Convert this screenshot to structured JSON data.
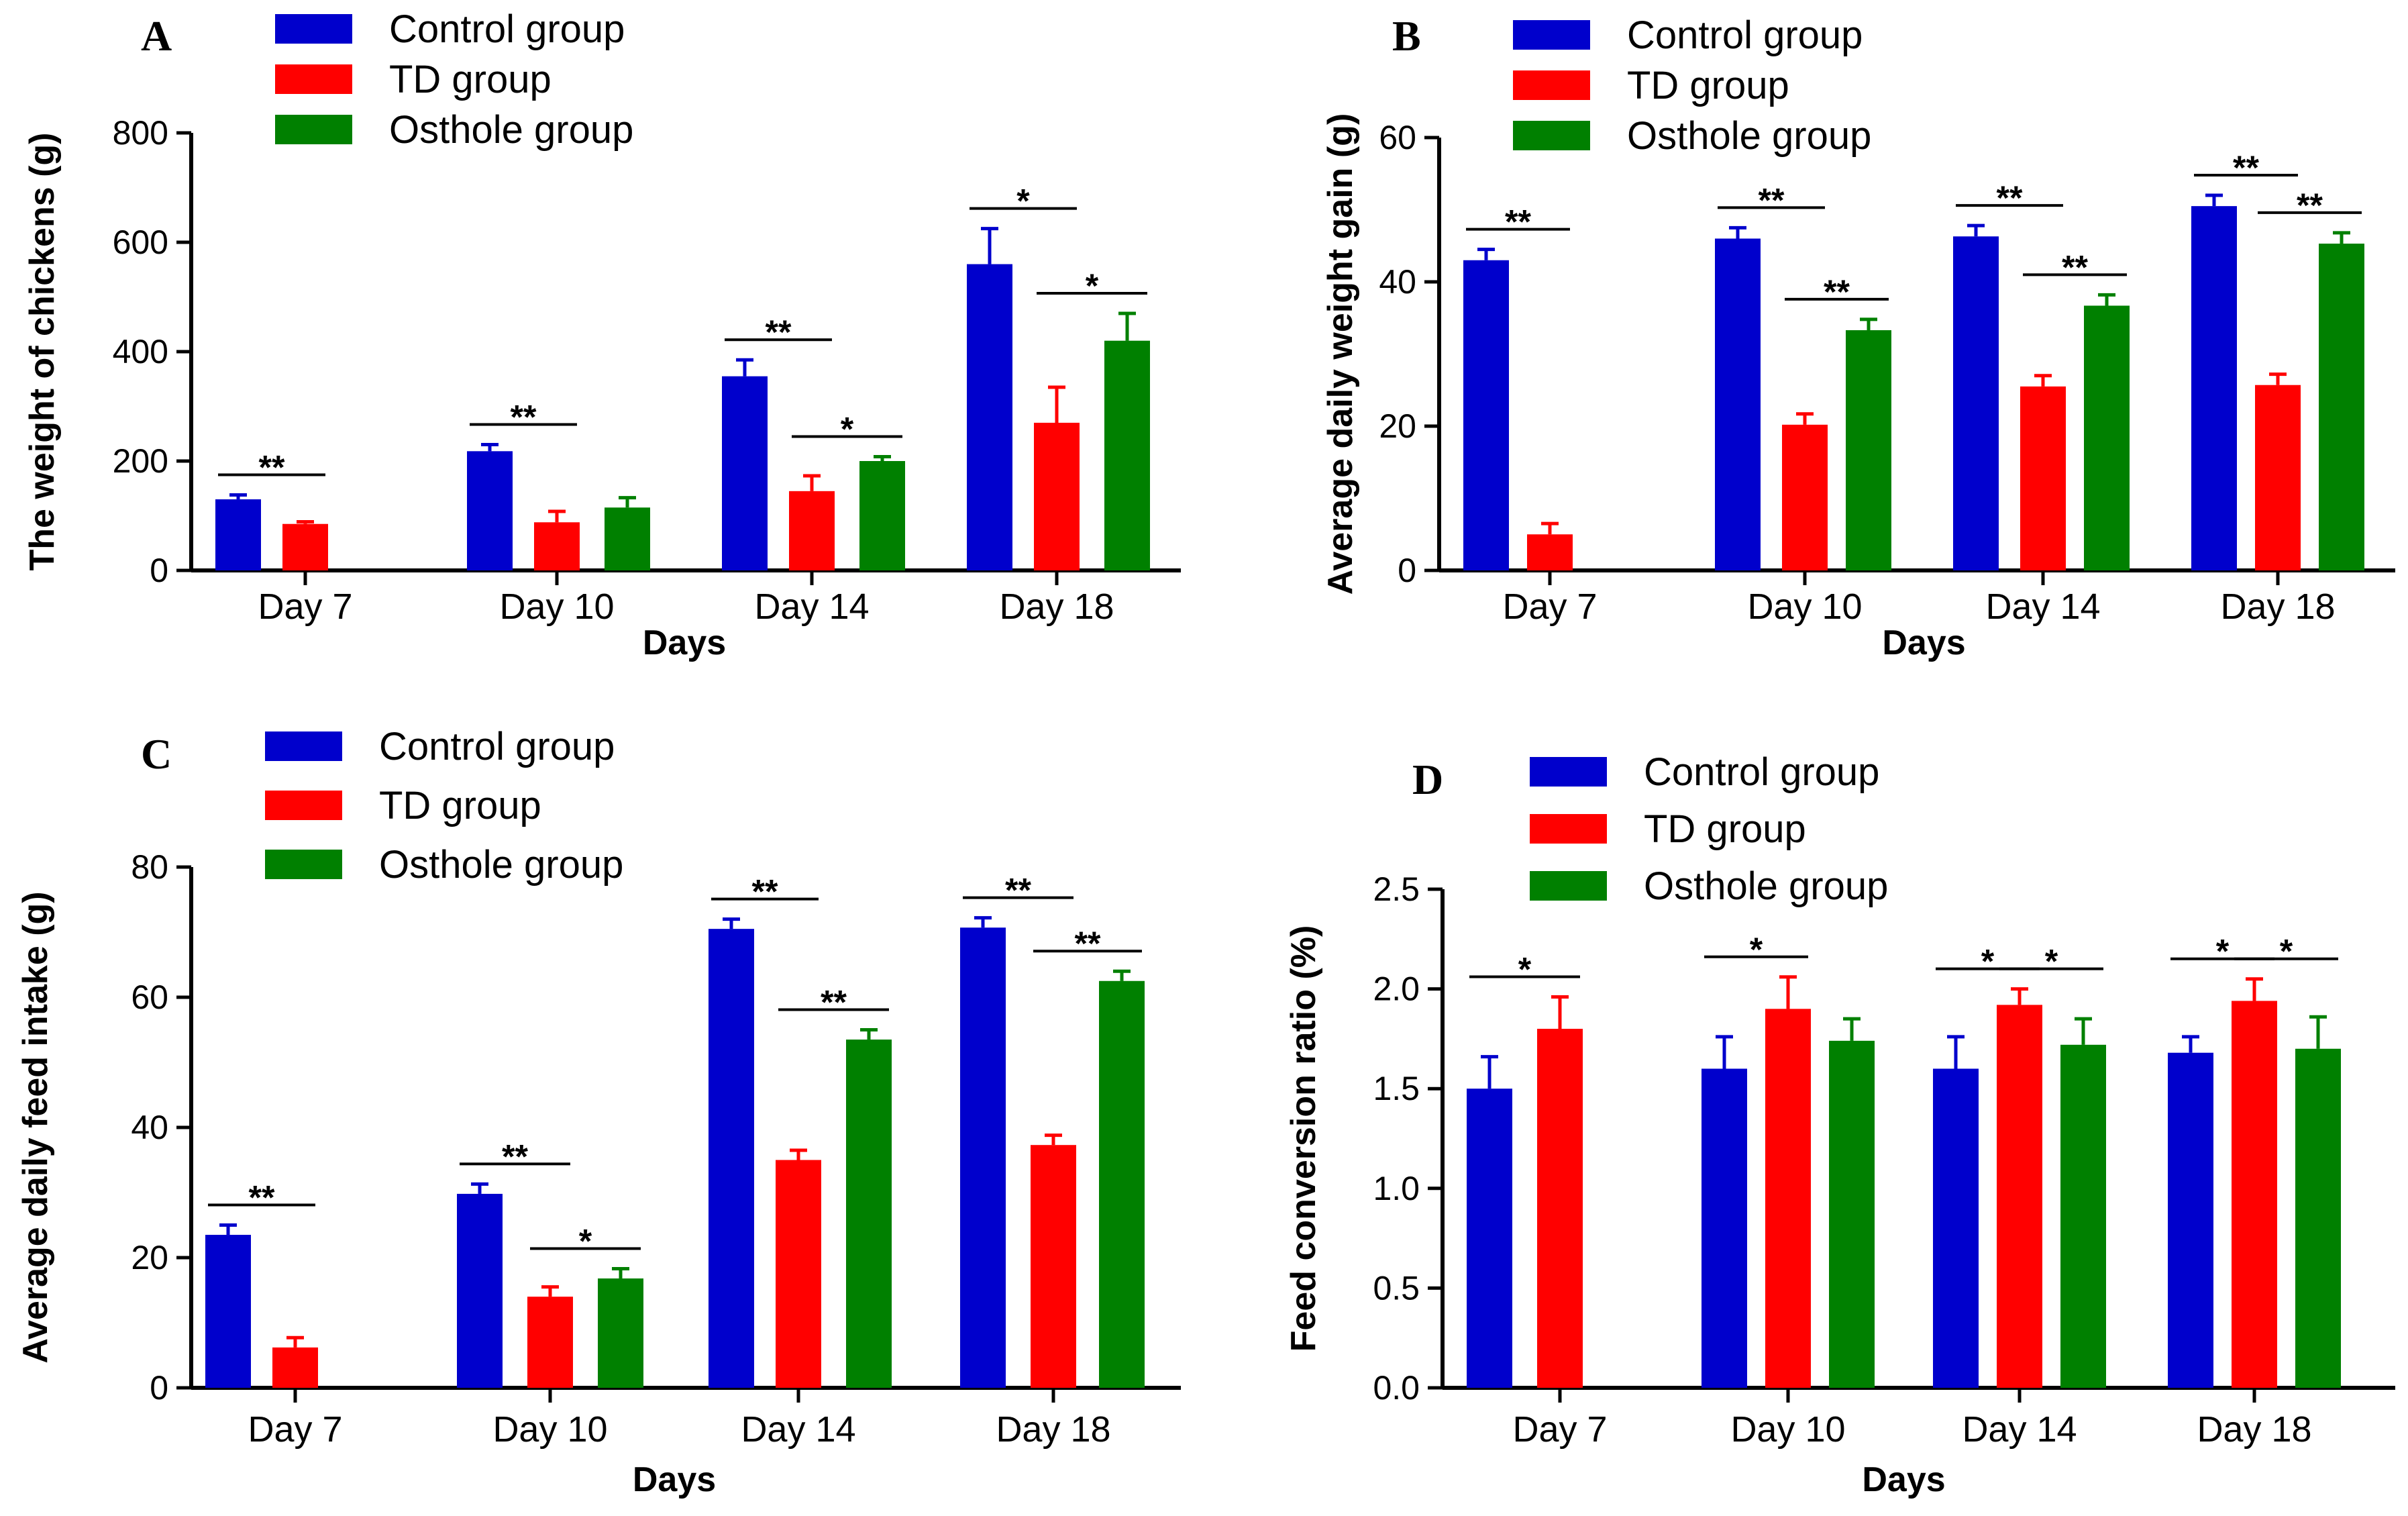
{
  "figure": {
    "legend_entries": [
      "Control group",
      "TD group",
      "Osthole group"
    ],
    "colors": {
      "Control group": "#0000cc",
      "TD group": "#ff0000",
      "Osthole group": "#008000"
    }
  },
  "chart_data": [
    {
      "panel": "A",
      "type": "bar",
      "title": "",
      "xlabel": "Days",
      "ylabel": "The weight of chickens (g)",
      "ylim": [
        0,
        800
      ],
      "yticks": [
        "0",
        "200",
        "400",
        "600",
        "800"
      ],
      "categories": [
        "Day 7",
        "Day 10",
        "Day 14",
        "Day 18"
      ],
      "series": [
        {
          "name": "Control group",
          "values": [
            130,
            218,
            355,
            560
          ],
          "errors": [
            8,
            12,
            30,
            65
          ]
        },
        {
          "name": "TD group",
          "values": [
            85,
            88,
            145,
            270
          ],
          "errors": [
            4,
            20,
            28,
            65
          ]
        },
        {
          "name": "Osthole group",
          "values": [
            null,
            115,
            200,
            420
          ],
          "errors": [
            null,
            18,
            8,
            50
          ]
        }
      ],
      "annotations": [
        {
          "category": "Day 7",
          "from": "Control group",
          "to": "TD group",
          "label": "**"
        },
        {
          "category": "Day 10",
          "from": "Control group",
          "to": "TD group",
          "label": "**"
        },
        {
          "category": "Day 14",
          "from": "Control group",
          "to": "TD group",
          "label": "**"
        },
        {
          "category": "Day 14",
          "from": "TD group",
          "to": "Osthole group",
          "label": "*"
        },
        {
          "category": "Day 18",
          "from": "Control group",
          "to": "TD group",
          "label": "*"
        },
        {
          "category": "Day 18",
          "from": "TD group",
          "to": "Osthole group",
          "label": "*"
        }
      ]
    },
    {
      "panel": "B",
      "type": "bar",
      "title": "",
      "xlabel": "Days",
      "ylabel": "Average daily weight gain (g)",
      "ylim": [
        0,
        60
      ],
      "yticks": [
        "0",
        "20",
        "40",
        "60"
      ],
      "categories": [
        "Day 7",
        "Day 10",
        "Day 14",
        "Day 18"
      ],
      "series": [
        {
          "name": "Control group",
          "values": [
            43,
            46,
            46.3,
            50.5
          ],
          "errors": [
            1.5,
            1.5,
            1.5,
            1.5
          ]
        },
        {
          "name": "TD group",
          "values": [
            5,
            20.2,
            25.5,
            25.7
          ],
          "errors": [
            1.5,
            1.5,
            1.5,
            1.5
          ]
        },
        {
          "name": "Osthole group",
          "values": [
            null,
            33.3,
            36.7,
            45.3
          ],
          "errors": [
            null,
            1.5,
            1.5,
            1.5
          ]
        }
      ],
      "annotations": [
        {
          "category": "Day 7",
          "from": "Control group",
          "to": "TD group",
          "label": "**"
        },
        {
          "category": "Day 10",
          "from": "Control group",
          "to": "TD group",
          "label": "**"
        },
        {
          "category": "Day 10",
          "from": "TD group",
          "to": "Osthole group",
          "label": "**"
        },
        {
          "category": "Day 14",
          "from": "Control group",
          "to": "TD group",
          "label": "**"
        },
        {
          "category": "Day 14",
          "from": "TD group",
          "to": "Osthole group",
          "label": "**"
        },
        {
          "category": "Day 18",
          "from": "Control group",
          "to": "TD group",
          "label": "**"
        },
        {
          "category": "Day 18",
          "from": "TD group",
          "to": "Osthole group",
          "label": "**"
        }
      ]
    },
    {
      "panel": "C",
      "type": "bar",
      "title": "",
      "xlabel": "Days",
      "ylabel": "Average daily feed intake (g)",
      "ylim": [
        0,
        80
      ],
      "yticks": [
        "0",
        "20",
        "40",
        "60",
        "80"
      ],
      "categories": [
        "Day 7",
        "Day 10",
        "Day 14",
        "Day 18"
      ],
      "series": [
        {
          "name": "Control group",
          "values": [
            23.5,
            29.8,
            70.5,
            70.7
          ],
          "errors": [
            1.5,
            1.5,
            1.5,
            1.5
          ]
        },
        {
          "name": "TD group",
          "values": [
            6.2,
            14,
            35,
            37.3
          ],
          "errors": [
            1.5,
            1.5,
            1.5,
            1.5
          ]
        },
        {
          "name": "Osthole group",
          "values": [
            null,
            16.8,
            53.5,
            62.5
          ],
          "errors": [
            null,
            1.5,
            1.5,
            1.5
          ]
        }
      ],
      "annotations": [
        {
          "category": "Day 7",
          "from": "Control group",
          "to": "TD group",
          "label": "**"
        },
        {
          "category": "Day 10",
          "from": "Control group",
          "to": "TD group",
          "label": "**"
        },
        {
          "category": "Day 10",
          "from": "TD group",
          "to": "Osthole group",
          "label": "*"
        },
        {
          "category": "Day 14",
          "from": "Control group",
          "to": "TD group",
          "label": "**"
        },
        {
          "category": "Day 14",
          "from": "TD group",
          "to": "Osthole group",
          "label": "**"
        },
        {
          "category": "Day 18",
          "from": "Control group",
          "to": "TD group",
          "label": "**"
        },
        {
          "category": "Day 18",
          "from": "TD group",
          "to": "Osthole group",
          "label": "**"
        }
      ]
    },
    {
      "panel": "D",
      "type": "bar",
      "title": "",
      "xlabel": "Days",
      "ylabel": "Feed conversion ratio (%)",
      "ylim": [
        0,
        2.5
      ],
      "yticks": [
        "0.0",
        "0.5",
        "1.0",
        "1.5",
        "2.0",
        "2.5"
      ],
      "categories": [
        "Day 7",
        "Day 10",
        "Day 14",
        "Day 18"
      ],
      "series": [
        {
          "name": "Control group",
          "values": [
            1.5,
            1.6,
            1.6,
            1.68
          ],
          "errors": [
            0.16,
            0.16,
            0.16,
            0.08
          ]
        },
        {
          "name": "TD group",
          "values": [
            1.8,
            1.9,
            1.92,
            1.94
          ],
          "errors": [
            0.16,
            0.16,
            0.08,
            0.11
          ]
        },
        {
          "name": "Osthole group",
          "values": [
            null,
            1.74,
            1.72,
            1.7
          ],
          "errors": [
            null,
            0.11,
            0.13,
            0.16
          ]
        }
      ],
      "annotations": [
        {
          "category": "Day 7",
          "from": "Control group",
          "to": "TD group",
          "label": "*"
        },
        {
          "category": "Day 10",
          "from": "Control group",
          "to": "TD group",
          "label": "*"
        },
        {
          "category": "Day 14",
          "from": "Control group",
          "to": "TD group",
          "label": "*"
        },
        {
          "category": "Day 14",
          "from": "TD group",
          "to": "Osthole group",
          "label": "*"
        },
        {
          "category": "Day 18",
          "from": "Control group",
          "to": "TD group",
          "label": "*"
        },
        {
          "category": "Day 18",
          "from": "TD group",
          "to": "Osthole group",
          "label": "*"
        }
      ]
    }
  ]
}
